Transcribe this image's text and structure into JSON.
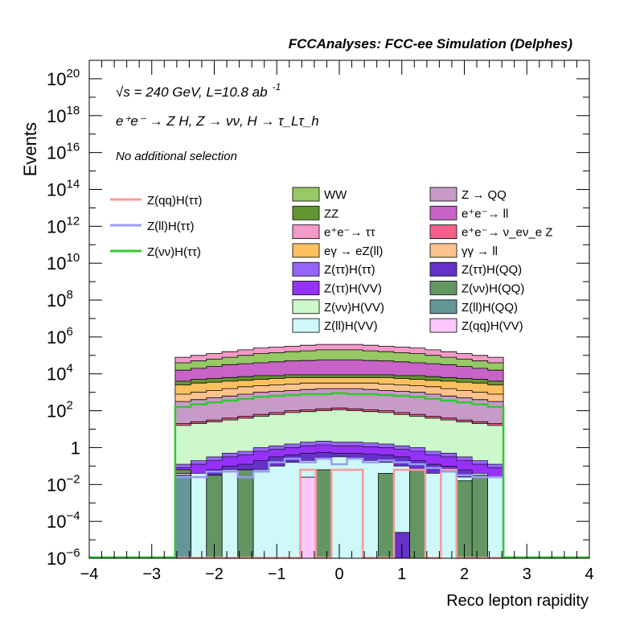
{
  "chart_data": {
    "type": "area",
    "title": "FCCAnalyses: FCC-ee Simulation (Delphes)",
    "xlabel": "Reco lepton rapidity",
    "ylabel": "Events",
    "xlim": [
      -4,
      4
    ],
    "ylim_exponent": [
      -6,
      21
    ],
    "log_y": true,
    "grid": false,
    "x_ticks": [
      "−4",
      "−3",
      "−2",
      "−1",
      "0",
      "1",
      "2",
      "3",
      "4"
    ],
    "y_ticks": [
      {
        "exp": -6,
        "base": "10",
        "sup": "−6"
      },
      {
        "exp": -4,
        "base": "10",
        "sup": "−4"
      },
      {
        "exp": -2,
        "base": "10",
        "sup": "−2"
      },
      {
        "exp": 0,
        "base": "1",
        "sup": ""
      },
      {
        "exp": 2,
        "base": "10",
        "sup": "2"
      },
      {
        "exp": 4,
        "base": "10",
        "sup": "4"
      },
      {
        "exp": 6,
        "base": "10",
        "sup": "6"
      },
      {
        "exp": 8,
        "base": "10",
        "sup": "8"
      },
      {
        "exp": 10,
        "base": "10",
        "sup": "10"
      },
      {
        "exp": 12,
        "base": "10",
        "sup": "12"
      },
      {
        "exp": 14,
        "base": "10",
        "sup": "14"
      },
      {
        "exp": 16,
        "base": "10",
        "sup": "16"
      },
      {
        "exp": 18,
        "base": "10",
        "sup": "18"
      },
      {
        "exp": 20,
        "base": "10",
        "sup": "20"
      }
    ],
    "annotations": {
      "energy_lumi": "√s = 240 GeV, L=10.8 ab",
      "energy_lumi_sup": "-1",
      "process": "e⁺e⁻ → Z H, Z → νν, H → τ_Lτ_h",
      "selection": "No additional selection"
    },
    "bins": {
      "n": 21,
      "x_min": -2.625,
      "x_max": 2.625,
      "width": 0.25
    },
    "stack_profiles": [
      {
        "name": "Z(ll)H(VV)",
        "color": "#cff8f8",
        "log10_values": [
          -1.6,
          -1.4,
          -1.6,
          -1.2,
          -1.4,
          -1.2,
          -1.0,
          -0.8,
          -0.7,
          -0.6,
          -0.5,
          -0.6,
          -0.7,
          -0.8,
          -1.0,
          -1.2,
          -1.4,
          -1.2,
          -1.6,
          -1.4,
          -1.6
        ]
      },
      {
        "name": "Z(νν)H(VV)",
        "color": "#ccf8cc",
        "log10_values": [
          1.2,
          1.3,
          1.4,
          1.5,
          1.6,
          1.7,
          1.8,
          1.9,
          1.95,
          2.0,
          2.05,
          2.0,
          1.95,
          1.9,
          1.8,
          1.7,
          1.6,
          1.5,
          1.4,
          1.3,
          1.2
        ]
      },
      {
        "name": "e⁺e⁻ → ν_eν_e Z",
        "color": "#f4608a",
        "log10_values": [
          1.3,
          1.4,
          1.5,
          1.6,
          1.7,
          1.8,
          1.9,
          2.0,
          2.05,
          2.1,
          2.15,
          2.1,
          2.05,
          2.0,
          1.9,
          1.8,
          1.7,
          1.6,
          1.5,
          1.4,
          1.3
        ]
      },
      {
        "name": "Z → QQ",
        "color": "#c89ac8",
        "log10_values": [
          2.5,
          2.6,
          2.7,
          2.8,
          2.9,
          3.0,
          3.05,
          3.1,
          3.15,
          3.2,
          3.2,
          3.2,
          3.15,
          3.1,
          3.05,
          3.0,
          2.9,
          2.8,
          2.7,
          2.6,
          2.5
        ]
      },
      {
        "name": "γγ → ll",
        "color": "#fcc48c",
        "log10_values": [
          2.9,
          3.0,
          3.1,
          3.2,
          3.3,
          3.35,
          3.4,
          3.45,
          3.5,
          3.5,
          3.5,
          3.5,
          3.5,
          3.45,
          3.4,
          3.35,
          3.3,
          3.2,
          3.1,
          3.0,
          2.9
        ]
      },
      {
        "name": "eγ → eZ(ll)",
        "color": "#fcc060",
        "log10_values": [
          3.4,
          3.5,
          3.55,
          3.6,
          3.65,
          3.7,
          3.75,
          3.8,
          3.8,
          3.8,
          3.8,
          3.8,
          3.8,
          3.8,
          3.75,
          3.7,
          3.65,
          3.6,
          3.55,
          3.5,
          3.4
        ]
      },
      {
        "name": "ZZ",
        "color": "#649632",
        "log10_values": [
          3.6,
          3.7,
          3.75,
          3.8,
          3.85,
          3.9,
          3.9,
          3.95,
          3.95,
          3.95,
          3.95,
          3.95,
          3.95,
          3.95,
          3.9,
          3.9,
          3.85,
          3.8,
          3.75,
          3.7,
          3.6
        ]
      },
      {
        "name": "e⁺e⁻ → ll",
        "color": "#c864c8",
        "log10_values": [
          4.2,
          4.3,
          4.4,
          4.5,
          4.55,
          4.6,
          4.65,
          4.7,
          4.72,
          4.75,
          4.75,
          4.75,
          4.72,
          4.7,
          4.65,
          4.6,
          4.55,
          4.5,
          4.4,
          4.3,
          4.2
        ]
      },
      {
        "name": "WW",
        "color": "#96c864",
        "log10_values": [
          4.6,
          4.7,
          4.8,
          4.9,
          5.0,
          5.1,
          5.15,
          5.2,
          5.25,
          5.3,
          5.3,
          5.3,
          5.25,
          5.2,
          5.15,
          5.1,
          5.0,
          4.9,
          4.8,
          4.7,
          4.6
        ]
      },
      {
        "name": "e⁺e⁻ → ττ",
        "color": "#f49ac8",
        "log10_values": [
          4.9,
          5.0,
          5.1,
          5.2,
          5.3,
          5.4,
          5.45,
          5.5,
          5.55,
          5.6,
          5.6,
          5.6,
          5.55,
          5.5,
          5.45,
          5.4,
          5.3,
          5.2,
          5.1,
          5.0,
          4.9
        ]
      }
    ],
    "small_components": [
      {
        "name": "Z(ττ)H(QQ)",
        "color": "#6432c8",
        "log10_values": [
          -1.6,
          -1.4,
          -1.2,
          -1.0,
          -0.9,
          -0.7,
          -0.5,
          -0.4,
          -0.3,
          -0.25,
          -0.3,
          -0.3,
          -0.35,
          -0.4,
          -0.5,
          -0.7,
          -0.9,
          -1.0,
          -1.2,
          -1.4,
          -1.6
        ]
      },
      {
        "name": "Z(ττ)H(VV)",
        "color": "#9632f8",
        "log10_values": [
          -1.1,
          -0.9,
          -0.7,
          -0.5,
          -0.4,
          -0.2,
          -0.1,
          0.0,
          0.1,
          0.15,
          0.1,
          0.1,
          0.05,
          0.0,
          -0.1,
          -0.2,
          -0.4,
          -0.5,
          -0.7,
          -0.9,
          -1.1
        ]
      },
      {
        "name": "Z(ττ)H(ττ)",
        "color": "#9664f8",
        "log10_values": [
          -0.9,
          -0.7,
          -0.5,
          -0.3,
          -0.2,
          0.0,
          0.1,
          0.2,
          0.3,
          0.35,
          0.3,
          0.3,
          0.25,
          0.2,
          0.1,
          0.0,
          -0.2,
          -0.3,
          -0.5,
          -0.7,
          -0.9
        ]
      }
    ],
    "sparse_bins": [
      {
        "name": "Z(νν)H(QQ)",
        "color": "#649664",
        "log10_values": [
          -1.2,
          -6,
          -1.5,
          -6,
          -1.2,
          -6,
          -6,
          -6,
          -6,
          -1.2,
          -6,
          -6,
          -6,
          -1.4,
          -6,
          -1.2,
          -6,
          -6,
          -1.8,
          -1.5,
          -6
        ]
      },
      {
        "name": "Z(qq)H(VV)",
        "color": "#fcc8fc",
        "log10_values": [
          -1.4,
          -6,
          -6,
          -6,
          -6,
          -6,
          -6,
          -6,
          -1.6,
          -6,
          -6,
          -6,
          -6,
          -6,
          -6,
          -6,
          -6,
          -6,
          -6,
          -6,
          -6
        ]
      },
      {
        "name": "Z(ll)H(QQ)",
        "color": "#649696",
        "log10_values": [
          -1.5,
          -6,
          -6,
          -6,
          -6,
          -6,
          -6,
          -6,
          -6,
          -6,
          -6,
          -6,
          -6,
          -6,
          -6,
          -6,
          -6,
          -6,
          -6,
          -6,
          -6
        ]
      },
      {
        "name": "Z(ττ)H(QQ)",
        "color": "#6432c8",
        "log10_values": [
          -6,
          -6,
          -6,
          -6,
          -6,
          -6,
          -6,
          -6,
          -6,
          -6,
          -6,
          -6,
          -6,
          -6,
          -4.6,
          -6,
          -6,
          -6,
          -6,
          -6,
          -6
        ]
      }
    ],
    "signal_lines": [
      {
        "name": "Z(qq)H(ττ)",
        "color": "#f89a9a",
        "log10_values": [
          -6,
          -6,
          -6,
          -6,
          -6,
          -6,
          -6,
          -6,
          -1.2,
          -6,
          -1.2,
          -1.2,
          -6,
          -6,
          -1.2,
          -1.2,
          -6,
          -1.2,
          -6,
          -6,
          -6
        ]
      },
      {
        "name": "Z(ll)H(ττ)",
        "color": "#9a9af8",
        "log10_values": [
          -1.6,
          -1.6,
          -1.3,
          -1.3,
          -1.6,
          -1.3,
          -0.8,
          -0.6,
          -0.8,
          -0.6,
          -0.9,
          -0.6,
          -0.8,
          -0.7,
          -0.8,
          -0.9,
          -1.1,
          -1.3,
          -1.5,
          -1.6,
          -1.6
        ]
      },
      {
        "name": "Z(νν)H(ττ)",
        "color": "#32c832",
        "log10_values": [
          2.2,
          2.35,
          2.45,
          2.55,
          2.65,
          2.75,
          2.8,
          2.85,
          2.9,
          2.9,
          2.95,
          2.9,
          2.9,
          2.85,
          2.8,
          2.75,
          2.65,
          2.55,
          2.45,
          2.35,
          2.2
        ]
      }
    ],
    "legend": {
      "placement": "top-right",
      "line_entries": [
        "Z(qq)H(ττ)",
        "Z(ll)H(ττ)",
        "Z(νν)H(ττ)"
      ],
      "fill_entries": [
        [
          "WW",
          "Z → QQ"
        ],
        [
          "ZZ",
          "e⁺e⁻→ ll"
        ],
        [
          "e⁺e⁻→ ττ",
          "e⁺e⁻→ ν_eν_e Z"
        ],
        [
          "eγ → eZ(ll)",
          "γγ → ll"
        ],
        [
          "Z(ττ)H(ττ)",
          "Z(ττ)H(QQ)"
        ],
        [
          "Z(ττ)H(VV)",
          "Z(νν)H(QQ)"
        ],
        [
          "Z(νν)H(VV)",
          "Z(ll)H(QQ)"
        ],
        [
          "Z(ll)H(VV)",
          "Z(qq)H(VV)"
        ]
      ],
      "colors": {
        "WW": "#96c864",
        "Z → QQ": "#c89ac8",
        "ZZ": "#649632",
        "e⁺e⁻→ ll": "#c864c8",
        "e⁺e⁻→ ττ": "#f49ac8",
        "e⁺e⁻→ ν_eν_e Z": "#f4608a",
        "eγ → eZ(ll)": "#fcc060",
        "γγ → ll": "#fcc48c",
        "Z(ττ)H(ττ)": "#9664f8",
        "Z(ττ)H(QQ)": "#6432c8",
        "Z(ττ)H(VV)": "#9632f8",
        "Z(νν)H(QQ)": "#649664",
        "Z(νν)H(VV)": "#ccf8cc",
        "Z(ll)H(QQ)": "#649696",
        "Z(ll)H(VV)": "#cff8f8",
        "Z(qq)H(VV)": "#fcc8fc",
        "Z(qq)H(ττ)": "#f89a9a",
        "Z(ll)H(ττ)": "#9a9af8",
        "Z(νν)H(ττ)": "#32c832"
      }
    }
  }
}
